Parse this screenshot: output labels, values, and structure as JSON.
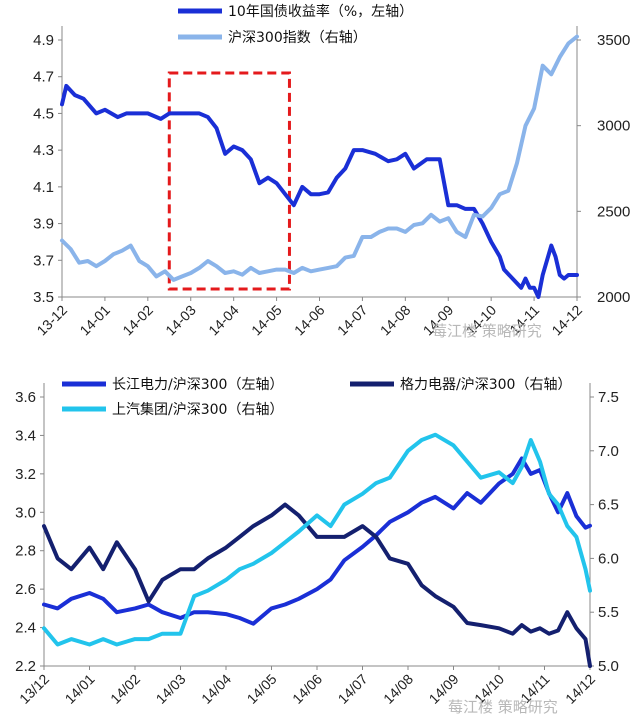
{
  "watermark": "莓江楼 策略研究",
  "chart_data": [
    {
      "type": "line",
      "title": "",
      "xlabel": "",
      "y_left_lim": [
        3.5,
        4.9
      ],
      "y_right_lim": [
        2000,
        3500
      ],
      "y_left_ticks": [
        "3.5",
        "3.7",
        "3.9",
        "4.1",
        "4.3",
        "4.5",
        "4.7",
        "4.9"
      ],
      "y_right_ticks": [
        "2000",
        "2500",
        "3000",
        "3500"
      ],
      "x_ticks": [
        "13-12",
        "14-01",
        "14-02",
        "14-03",
        "14-04",
        "14-05",
        "14-06",
        "14-07",
        "14-08",
        "14-09",
        "14-10",
        "14-11",
        "14-12"
      ],
      "highlight_box": {
        "from_month": 2.5,
        "to_month": 5.3,
        "color": "#e41a1c",
        "style": "dashed"
      },
      "series": [
        {
          "name": "10年国债收益率（%，左轴）",
          "axis": "left",
          "color": "#1a2fd6",
          "x": [
            0,
            0.1,
            0.3,
            0.5,
            0.8,
            1.0,
            1.3,
            1.5,
            1.8,
            2.0,
            2.3,
            2.5,
            2.7,
            3.0,
            3.2,
            3.4,
            3.6,
            3.8,
            4.0,
            4.2,
            4.4,
            4.6,
            4.8,
            5.0,
            5.2,
            5.4,
            5.6,
            5.8,
            6.0,
            6.2,
            6.4,
            6.6,
            6.8,
            7.0,
            7.3,
            7.6,
            7.8,
            8.0,
            8.2,
            8.5,
            8.8,
            9.0,
            9.2,
            9.4,
            9.6,
            9.8,
            10.0,
            10.2,
            10.3,
            10.5,
            10.7,
            10.8,
            10.9,
            11.0,
            11.1,
            11.2,
            11.4,
            11.5,
            11.6,
            11.7,
            11.8,
            12.0
          ],
          "values": [
            4.55,
            4.65,
            4.6,
            4.58,
            4.5,
            4.52,
            4.48,
            4.5,
            4.5,
            4.5,
            4.47,
            4.5,
            4.5,
            4.5,
            4.5,
            4.48,
            4.42,
            4.28,
            4.32,
            4.3,
            4.25,
            4.12,
            4.15,
            4.12,
            4.06,
            4.0,
            4.1,
            4.06,
            4.06,
            4.07,
            4.15,
            4.2,
            4.3,
            4.3,
            4.28,
            4.24,
            4.25,
            4.28,
            4.2,
            4.25,
            4.25,
            4.0,
            4.0,
            3.98,
            3.98,
            3.9,
            3.8,
            3.72,
            3.65,
            3.6,
            3.55,
            3.6,
            3.55,
            3.55,
            3.5,
            3.62,
            3.78,
            3.72,
            3.62,
            3.6,
            3.62,
            3.62
          ]
        },
        {
          "name": "沪深300指数（右轴）",
          "axis": "right",
          "color": "#8ab4ea",
          "x": [
            0,
            0.2,
            0.4,
            0.6,
            0.8,
            1.0,
            1.2,
            1.4,
            1.6,
            1.8,
            2.0,
            2.2,
            2.4,
            2.6,
            2.8,
            3.0,
            3.2,
            3.4,
            3.6,
            3.8,
            4.0,
            4.2,
            4.4,
            4.6,
            4.8,
            5.0,
            5.2,
            5.4,
            5.6,
            5.8,
            6.0,
            6.2,
            6.4,
            6.6,
            6.8,
            7.0,
            7.2,
            7.4,
            7.6,
            7.8,
            8.0,
            8.2,
            8.4,
            8.6,
            8.8,
            9.0,
            9.2,
            9.4,
            9.6,
            9.8,
            10.0,
            10.2,
            10.4,
            10.6,
            10.8,
            11.0,
            11.2,
            11.4,
            11.6,
            11.8,
            12.0
          ],
          "values": [
            2330,
            2280,
            2200,
            2210,
            2180,
            2210,
            2250,
            2270,
            2300,
            2210,
            2180,
            2120,
            2150,
            2100,
            2120,
            2140,
            2170,
            2210,
            2180,
            2140,
            2150,
            2130,
            2170,
            2140,
            2150,
            2160,
            2160,
            2140,
            2170,
            2150,
            2160,
            2170,
            2180,
            2230,
            2240,
            2350,
            2350,
            2380,
            2400,
            2400,
            2380,
            2420,
            2430,
            2480,
            2440,
            2460,
            2380,
            2350,
            2480,
            2470,
            2520,
            2600,
            2620,
            2780,
            3000,
            3100,
            3350,
            3300,
            3400,
            3480,
            3520
          ]
        }
      ]
    },
    {
      "type": "line",
      "title": "",
      "xlabel": "",
      "y_left_lim": [
        2.2,
        3.6
      ],
      "y_right_lim": [
        5.0,
        7.5
      ],
      "y_left_ticks": [
        "2.2",
        "2.4",
        "2.6",
        "2.8",
        "3.0",
        "3.2",
        "3.4",
        "3.6"
      ],
      "y_right_ticks": [
        "5.0",
        "5.5",
        "6.0",
        "6.5",
        "7.0",
        "7.5"
      ],
      "x_ticks": [
        "13/12",
        "14/01",
        "14/02",
        "14/03",
        "14/04",
        "14/05",
        "14/06",
        "14/07",
        "14/08",
        "14/09",
        "14/10",
        "14/11",
        "14/12"
      ],
      "series": [
        {
          "name": "长江电力/沪深300（左轴）",
          "axis": "left",
          "color": "#1a2fd6",
          "x": [
            0,
            0.3,
            0.6,
            1.0,
            1.3,
            1.6,
            2.0,
            2.3,
            2.6,
            3.0,
            3.3,
            3.6,
            4.0,
            4.3,
            4.6,
            5.0,
            5.3,
            5.6,
            6.0,
            6.3,
            6.6,
            7.0,
            7.3,
            7.6,
            8.0,
            8.3,
            8.6,
            9.0,
            9.3,
            9.6,
            10.0,
            10.3,
            10.5,
            10.7,
            10.9,
            11.1,
            11.3,
            11.5,
            11.7,
            11.9,
            12.0
          ],
          "values": [
            2.52,
            2.5,
            2.55,
            2.58,
            2.55,
            2.48,
            2.5,
            2.52,
            2.48,
            2.45,
            2.48,
            2.48,
            2.47,
            2.45,
            2.42,
            2.5,
            2.52,
            2.55,
            2.6,
            2.65,
            2.75,
            2.82,
            2.88,
            2.95,
            3.0,
            3.05,
            3.08,
            3.02,
            3.1,
            3.05,
            3.15,
            3.2,
            3.28,
            3.2,
            3.22,
            3.1,
            3.0,
            3.1,
            2.98,
            2.92,
            2.93
          ]
        },
        {
          "name": "格力电器/沪深300（右轴）",
          "axis": "right",
          "color": "#14206f",
          "x": [
            0,
            0.3,
            0.6,
            1.0,
            1.3,
            1.6,
            2.0,
            2.3,
            2.6,
            3.0,
            3.3,
            3.6,
            4.0,
            4.3,
            4.6,
            5.0,
            5.3,
            5.6,
            6.0,
            6.3,
            6.6,
            7.0,
            7.3,
            7.6,
            8.0,
            8.3,
            8.6,
            9.0,
            9.3,
            9.6,
            10.0,
            10.3,
            10.5,
            10.7,
            10.9,
            11.1,
            11.3,
            11.5,
            11.7,
            11.9,
            12.0
          ],
          "values": [
            6.3,
            6.0,
            5.9,
            6.1,
            5.9,
            6.15,
            5.9,
            5.6,
            5.8,
            5.9,
            5.9,
            6.0,
            6.1,
            6.2,
            6.3,
            6.4,
            6.5,
            6.4,
            6.2,
            6.2,
            6.2,
            6.3,
            6.2,
            6.0,
            5.95,
            5.75,
            5.65,
            5.55,
            5.4,
            5.38,
            5.35,
            5.3,
            5.38,
            5.32,
            5.35,
            5.3,
            5.33,
            5.5,
            5.35,
            5.25,
            5.0
          ]
        },
        {
          "name": "上汽集团/沪深300（右轴）",
          "axis": "right",
          "color": "#22c4ec",
          "x": [
            0,
            0.3,
            0.6,
            1.0,
            1.3,
            1.6,
            2.0,
            2.3,
            2.6,
            3.0,
            3.3,
            3.6,
            4.0,
            4.3,
            4.6,
            5.0,
            5.3,
            5.6,
            6.0,
            6.3,
            6.6,
            7.0,
            7.3,
            7.6,
            8.0,
            8.3,
            8.6,
            9.0,
            9.3,
            9.6,
            10.0,
            10.3,
            10.5,
            10.7,
            10.9,
            11.1,
            11.3,
            11.5,
            11.7,
            11.9,
            12.0
          ],
          "values": [
            5.35,
            5.2,
            5.25,
            5.2,
            5.25,
            5.2,
            5.25,
            5.25,
            5.3,
            5.3,
            5.65,
            5.7,
            5.8,
            5.9,
            5.95,
            6.05,
            6.15,
            6.25,
            6.4,
            6.3,
            6.5,
            6.6,
            6.7,
            6.75,
            7.0,
            7.1,
            7.15,
            7.05,
            6.9,
            6.75,
            6.8,
            6.7,
            6.85,
            7.1,
            6.9,
            6.6,
            6.5,
            6.3,
            6.2,
            5.9,
            5.7
          ]
        }
      ]
    }
  ]
}
